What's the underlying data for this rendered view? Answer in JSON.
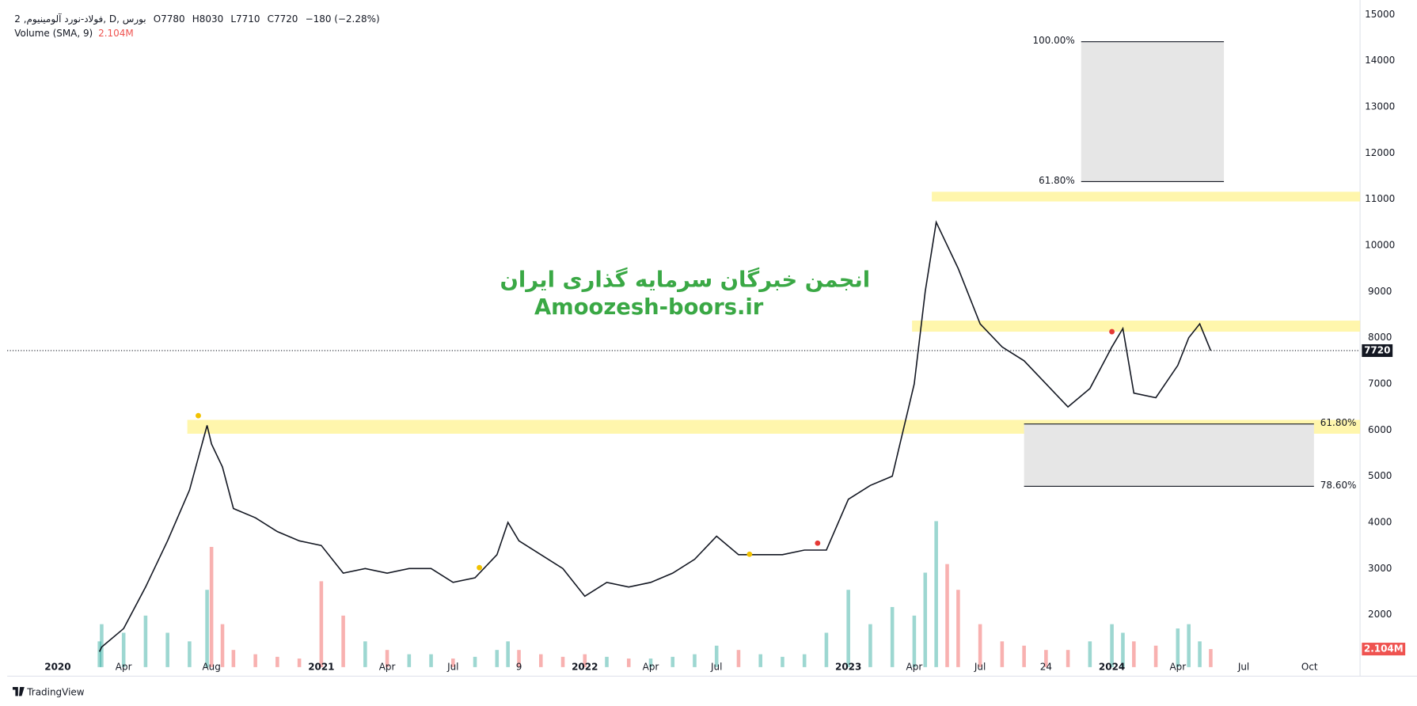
{
  "chart_data": {
    "type": "line",
    "symbol": "فولاد-نورد آلومینیوم, 2, D, بورس",
    "ohlc": [
      "O7780",
      "H8030",
      "L7710",
      "C7720",
      "−180 (−2.28%)"
    ],
    "volume_title": "Volume (SMA, 9)",
    "volume_sma": 2104000,
    "volume_sma_label": "2.104M",
    "watermark": [
      "انجمن خبرگان سرمایه گذاری ایران",
      "Amoozesh-boors.ir"
    ],
    "brand": "TradingView",
    "color": "#131722",
    "x": [
      1.9,
      2,
      3,
      4,
      5,
      6,
      6.8,
      7,
      7.5,
      8,
      9,
      10,
      11,
      12,
      13,
      14,
      15,
      16,
      17,
      18,
      19,
      20,
      20.5,
      21,
      22,
      23,
      24,
      25,
      26,
      27,
      28,
      29,
      30,
      31,
      32,
      33,
      34,
      35,
      36,
      37,
      38,
      39,
      39.5,
      40,
      40.5,
      41,
      42,
      43,
      44,
      45,
      46,
      47,
      48,
      48.5,
      49,
      50,
      51,
      51.5,
      52,
      52.5
    ],
    "values": [
      1200,
      1300,
      1700,
      2600,
      3600,
      4700,
      6100,
      5700,
      5200,
      4300,
      4100,
      3800,
      3600,
      3500,
      2900,
      3000,
      2900,
      3000,
      3000,
      2700,
      2800,
      3300,
      4000,
      3600,
      3300,
      3000,
      2400,
      2700,
      2600,
      2700,
      2900,
      3200,
      3700,
      3300,
      3300,
      3300,
      3400,
      3400,
      4500,
      4800,
      5000,
      7000,
      9000,
      10500,
      10000,
      9500,
      8300,
      7800,
      7500,
      7000,
      6500,
      6900,
      7800,
      8200,
      6800,
      6700,
      7400,
      8000,
      8300,
      7720
    ],
    "volume": [
      3000000,
      5000000,
      4000000,
      6000000,
      4000000,
      3000000,
      9000000,
      14000000,
      5000000,
      2000000,
      1500000,
      1200000,
      1000000,
      10000000,
      6000000,
      3000000,
      2000000,
      1500000,
      1500000,
      1000000,
      1200000,
      2000000,
      3000000,
      2000000,
      1500000,
      1200000,
      1500000,
      1200000,
      1000000,
      1000000,
      1200000,
      1500000,
      2500000,
      2000000,
      1500000,
      1200000,
      1500000,
      4000000,
      9000000,
      5000000,
      7000000,
      6000000,
      11000000,
      17000000,
      12000000,
      9000000,
      5000000,
      3000000,
      2500000,
      2000000,
      2000000,
      3000000,
      5000000,
      4000000,
      3000000,
      2500000,
      4500000,
      5000000,
      3000000,
      2104000
    ],
    "volume_ylim": [
      0,
      70000000
    ],
    "last": 7720,
    "xlim": [
      -2.3,
      59.3
    ],
    "xticks": [
      {
        "value": 0,
        "label": "2020"
      },
      {
        "value": 3,
        "label": "Apr"
      },
      {
        "value": 7,
        "label": "Aug"
      },
      {
        "value": 12,
        "label": "2021"
      },
      {
        "value": 15,
        "label": "Apr"
      },
      {
        "value": 18,
        "label": "Jul"
      },
      {
        "value": 21,
        "label": "9"
      },
      {
        "value": 24,
        "label": "2022"
      },
      {
        "value": 27,
        "label": "Apr"
      },
      {
        "value": 30,
        "label": "Jul"
      },
      {
        "value": 36,
        "label": "2023"
      },
      {
        "value": 39,
        "label": "Apr"
      },
      {
        "value": 42,
        "label": "Jul"
      },
      {
        "value": 45,
        "label": "24"
      },
      {
        "value": 48,
        "label": "2024"
      },
      {
        "value": 51,
        "label": "Apr"
      },
      {
        "value": 54,
        "label": "Jul"
      },
      {
        "value": 57,
        "label": "Oct"
      }
    ],
    "ylim": [
      865,
      15313
    ],
    "yticks": [
      2000,
      3000,
      4000,
      5000,
      6000,
      7000,
      8000,
      9000,
      10000,
      11000,
      12000,
      13000,
      14000,
      15000
    ],
    "grid": false,
    "zones": [
      {
        "from": 5920,
        "to": 6220,
        "start": 5.9
      },
      {
        "from": 8130,
        "to": 8370,
        "start": 38.9
      },
      {
        "from": 10950,
        "to": 11160,
        "start": 39.8
      }
    ],
    "fibs": [
      {
        "start": 44.0,
        "end": 57.2,
        "levels": [
          {
            "label": "61.80%",
            "price": 6130
          },
          {
            "label": "78.60%",
            "price": 4780
          }
        ]
      },
      {
        "start": 46.6,
        "end": 53.1,
        "levels": [
          {
            "label": "100.00%",
            "price": 14410
          },
          {
            "label": "61.80%",
            "price": 11380
          }
        ]
      }
    ],
    "markers": [
      {
        "x": 6.4,
        "y": 6310,
        "color": "#f2c200"
      },
      {
        "x": 19.2,
        "y": 3020,
        "color": "#f2c200"
      },
      {
        "x": 31.5,
        "y": 3310,
        "color": "#f2c200"
      },
      {
        "x": 34.6,
        "y": 3550,
        "color": "#e53935"
      },
      {
        "x": 48.0,
        "y": 8130,
        "color": "#e53935"
      }
    ]
  }
}
